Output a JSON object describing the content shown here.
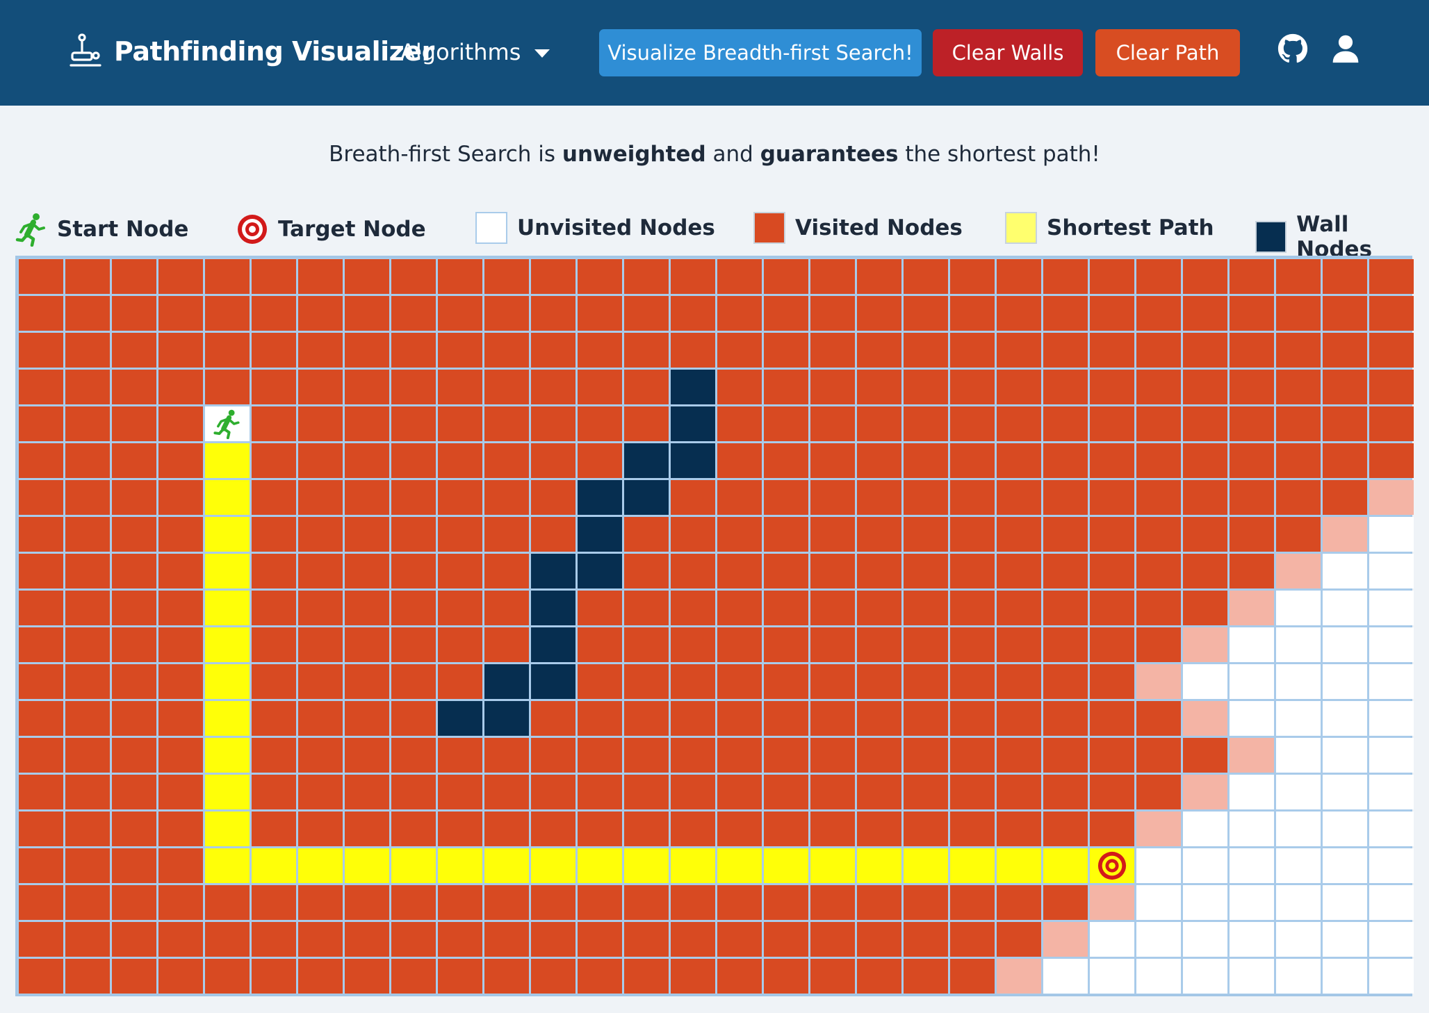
{
  "navbar": {
    "title": "Pathfinding Visualizer",
    "algorithms_label": "Algorithms",
    "visualize_label": "Visualize Breadth-first Search!",
    "clear_walls_label": "Clear Walls",
    "clear_path_label": "Clear Path",
    "icons": [
      "joystick-icon",
      "chevron-down-icon",
      "github-icon",
      "user-icon"
    ]
  },
  "description": {
    "part1": "Breath-first Search is ",
    "bold1": "unweighted",
    "part2": " and ",
    "bold2": "guarantees",
    "part3": " the shortest path!"
  },
  "legend": {
    "start": "Start Node",
    "target": "Target Node",
    "unvisited": "Unvisited Nodes",
    "visited": "Visited Nodes",
    "shortest": "Shortest Path",
    "wall": "Wall Nodes"
  },
  "colors": {
    "navbar": "#134e7a",
    "visualize_button": "#2f8ed5",
    "clear_walls_button": "#bd2127",
    "clear_path_button": "#d84d22",
    "visited": "#d84a22",
    "frontier": "#f4b4a5",
    "unvisited": "#ffffff",
    "wall": "#062e50",
    "shortest_path": "#ffff08",
    "start_icon": "#2eae2e",
    "target_icon": "#d21a1a"
  },
  "grid": {
    "rows": 20,
    "cols": 30,
    "legend_codes": {
      "U": "unvisited",
      "V": "visited",
      "F": "visited-frontier",
      "W": "wall",
      "P": "shortest-path",
      "S": "start",
      "T": "target"
    },
    "cells": [
      "VVVVVVVVVVVVVVVVVVVVVVVVVVVVVV",
      "VVVVVVVVVVVVVVVVVVVVVVVVVVVVVV",
      "VVVVVVVVVVVVVVVVVVVVVVVVVVVVVV",
      "VVVVVVVVVVVVVVWVVVVVVVVVVVVVVV",
      "VVVVSVVVVVVVVVWVVVVVVVVVVVVVVV",
      "VVVVPVVVVVVVVWWVVVVVVVVVVVVVVV",
      "VVVVPVVVVVVVWWVVVVVVVVVVVVVVVF",
      "VVVVPVVVVVVVWVVVVVVVVVVVVVVVFU",
      "VVVVPVVVVVVWWVVVVVVVVVVVVVVFUU",
      "VVVVPVVVVVVWVVVVVVVVVVVVVVFUUU",
      "VVVVPVVVVVVWVVVVVVVVVVVVVFUUUU",
      "VVVVPVVVVVWWVVVVVVVVVVVVFUUUUU",
      "VVVVPVVVVWWVVVVVVVVVVVVVVFUUUU",
      "VVVVPVVVVVVVVVVVVVVVVVVVVVFUUU",
      "VVVVPVVVVVVVVVVVVVVVVVVVVFUUUU",
      "VVVVPVVVVVVVVVVVVVVVVVVVFUUUUU",
      "VVVVPPPPPPPPPPPPPPPPPPPTUUUUUU",
      "VVVVVVVVVVVVVVVVVVVVVVVFUUUUUU",
      "VVVVVVVVVVVVVVVVVVVVVVFUUUUUUU",
      "VVVVVVVVVVVVVVVVVVVVVFUUUUUUUU"
    ]
  }
}
